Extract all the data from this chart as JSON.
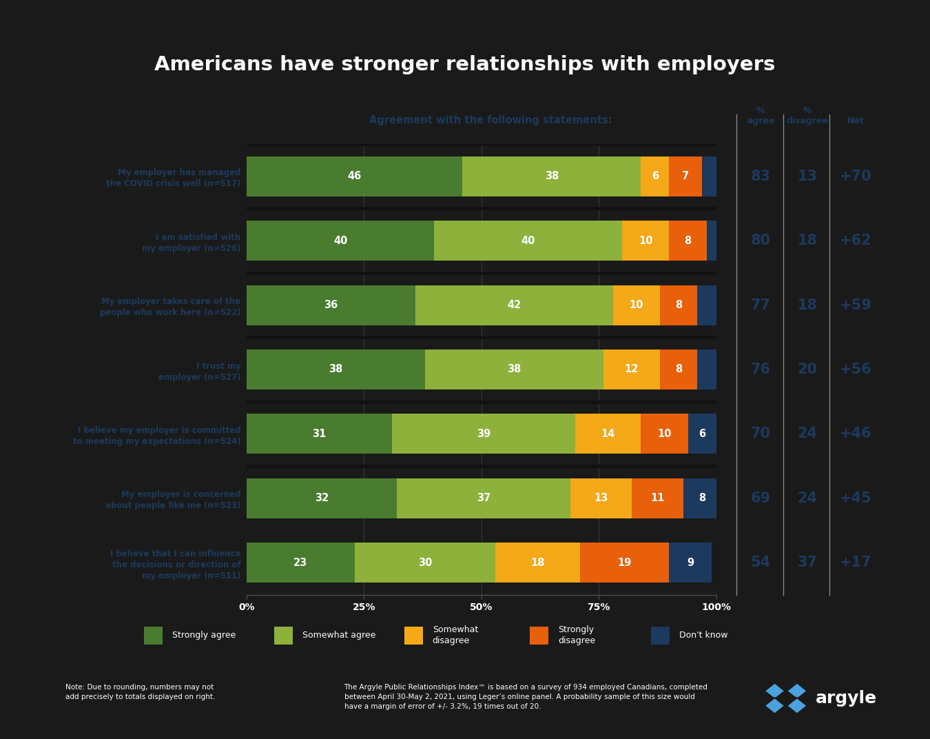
{
  "title": "Americans have stronger relationships with employers",
  "title_bg_color": "#4aa3df",
  "subtitle": "Agreement with the following statements:",
  "categories": [
    "My employer has managed\nthe COVID crisis well (n=517)",
    "I am satisfied with\nmy employer (n=526)",
    "My employer takes care of the\npeople who work here (n=522)",
    "I trust my\nemployer (n=527)",
    "I believe my employer is committed\nto meeting my expectations (n=524)",
    "My employer is concerned\nabout people like me (n=523)",
    "I believe that I can influence\nthe decisions or direction of\nmy employer (n=511)"
  ],
  "segments": [
    [
      46,
      38,
      6,
      7,
      4
    ],
    [
      40,
      40,
      10,
      8,
      2
    ],
    [
      36,
      42,
      10,
      8,
      4
    ],
    [
      38,
      38,
      12,
      8,
      4
    ],
    [
      31,
      39,
      14,
      10,
      6
    ],
    [
      32,
      37,
      13,
      11,
      8
    ],
    [
      23,
      30,
      18,
      19,
      9
    ]
  ],
  "pct_agree": [
    83,
    80,
    77,
    76,
    70,
    69,
    54
  ],
  "pct_disagree": [
    13,
    18,
    18,
    20,
    24,
    24,
    37
  ],
  "net": [
    "+70",
    "+62",
    "+59",
    "+56",
    "+46",
    "+45",
    "+17"
  ],
  "colors": [
    "#4a7c2f",
    "#8db13a",
    "#f5a818",
    "#e8600a",
    "#1c3a5e"
  ],
  "legend_labels": [
    "Strongly agree",
    "Somewhat agree",
    "Somewhat\ndisagree",
    "Strongly\ndisagree",
    "Don't know"
  ],
  "bg_color": "#1a1a1a",
  "label_color": "#1c3a5e",
  "bar_gap_color": "#111111",
  "bar_height": 0.62,
  "col_agree_label": "%\nagree",
  "col_disagree_label": "%\ndisagree",
  "col_net_label": "Net",
  "note_left": "Note: Due to rounding, numbers may not\nadd precisely to totals displayed on right.",
  "note_right": "The Argyle Public Relationships Index™ is based on a survey of 934 employed Canadians, completed\nbetween April 30-May 2, 2021, using Leger’s online panel. A probability sample of this size would\nhave a margin of error of +/- 3.2%, 19 times out of 20."
}
